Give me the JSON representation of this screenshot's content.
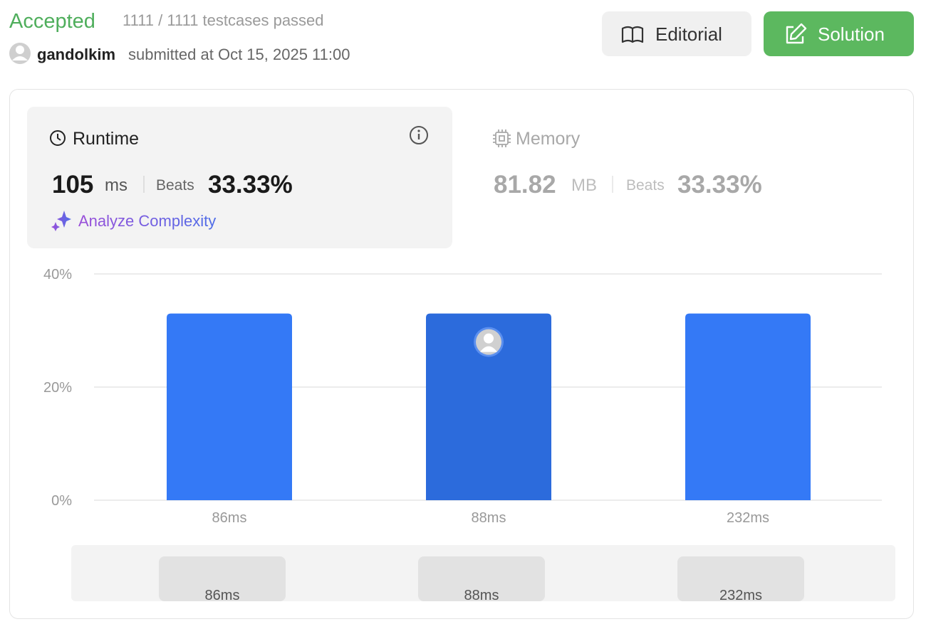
{
  "header": {
    "status": "Accepted",
    "testcases": "1111 / 1111 testcases passed",
    "user": "gandolkim",
    "submitted": "submitted at Oct 15, 2025 11:00"
  },
  "buttons": {
    "editorial": "Editorial",
    "solution": "Solution"
  },
  "runtime": {
    "title": "Runtime",
    "value": "105",
    "unit": "ms",
    "beats_label": "Beats",
    "beats": "33.33%",
    "analyze": "Analyze Complexity"
  },
  "memory": {
    "title": "Memory",
    "value": "81.82",
    "unit": "MB",
    "beats_label": "Beats",
    "beats": "33.33%"
  },
  "chart_data": {
    "type": "bar",
    "categories": [
      "86ms",
      "88ms",
      "232ms"
    ],
    "values": [
      33,
      33,
      33
    ],
    "colors": [
      "#3479f6",
      "#2c6bdc",
      "#3479f6"
    ],
    "ylim": [
      0,
      40
    ],
    "yticks": [
      {
        "value": 0,
        "label": "0%"
      },
      {
        "value": 20,
        "label": "20%"
      },
      {
        "value": 40,
        "label": "40%"
      }
    ],
    "grid": true
  }
}
